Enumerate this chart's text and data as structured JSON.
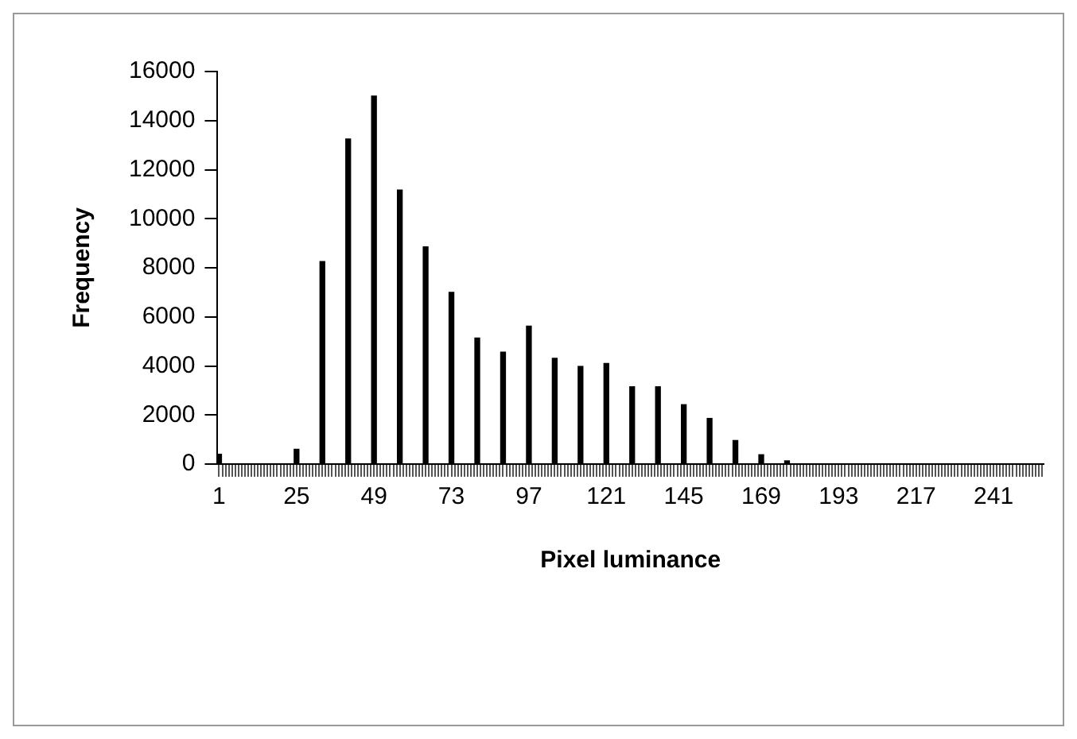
{
  "chart_data": {
    "type": "bar",
    "xlabel": "Pixel luminance",
    "ylabel": "Frequency",
    "color": "#000000",
    "grid": false,
    "legend": false,
    "ylim": [
      0,
      16000
    ],
    "yticks": [
      0,
      2000,
      4000,
      6000,
      8000,
      10000,
      12000,
      14000,
      16000
    ],
    "categories": [
      "1",
      null,
      null,
      null,
      null,
      null,
      null,
      null,
      null,
      null,
      null,
      null,
      null,
      null,
      null,
      null,
      null,
      null,
      null,
      null,
      null,
      null,
      null,
      null,
      "25",
      null,
      null,
      null,
      null,
      null,
      null,
      null,
      null,
      null,
      null,
      null,
      null,
      null,
      null,
      null,
      null,
      null,
      null,
      null,
      null,
      null,
      null,
      null,
      "49",
      null,
      null,
      null,
      null,
      null,
      null,
      null,
      null,
      null,
      null,
      null,
      null,
      null,
      null,
      null,
      null,
      null,
      null,
      null,
      null,
      null,
      null,
      null,
      "73",
      null,
      null,
      null,
      null,
      null,
      null,
      null,
      null,
      null,
      null,
      null,
      null,
      null,
      null,
      null,
      null,
      null,
      null,
      null,
      null,
      null,
      null,
      null,
      "97",
      null,
      null,
      null,
      null,
      null,
      null,
      null,
      null,
      null,
      null,
      null,
      null,
      null,
      null,
      null,
      null,
      null,
      null,
      null,
      null,
      null,
      null,
      null,
      "121",
      null,
      null,
      null,
      null,
      null,
      null,
      null,
      null,
      null,
      null,
      null,
      null,
      null,
      null,
      null,
      null,
      null,
      null,
      null,
      null,
      null,
      null,
      null,
      "145",
      null,
      null,
      null,
      null,
      null,
      null,
      null,
      null,
      null,
      null,
      null,
      null,
      null,
      null,
      null,
      null,
      null,
      null,
      null,
      null,
      null,
      null,
      null,
      "169",
      null,
      null,
      null,
      null,
      null,
      null,
      null,
      null,
      null,
      null,
      null,
      null,
      null,
      null,
      null,
      null,
      null,
      null,
      null,
      null,
      null,
      null,
      null,
      "193",
      null,
      null,
      null,
      null,
      null,
      null,
      null,
      null,
      null,
      null,
      null,
      null,
      null,
      null,
      null,
      null,
      null,
      null,
      null,
      null,
      null,
      null,
      null,
      "217",
      null,
      null,
      null,
      null,
      null,
      null,
      null,
      null,
      null,
      null,
      null,
      null,
      null,
      null,
      null,
      null,
      null,
      null,
      null,
      null,
      null,
      null,
      null,
      "241",
      null,
      null,
      null,
      null,
      null,
      null,
      null,
      null,
      null,
      null,
      null,
      null,
      null,
      null,
      null
    ],
    "values": [
      400,
      0,
      0,
      0,
      0,
      0,
      0,
      0,
      0,
      0,
      0,
      0,
      0,
      0,
      0,
      0,
      0,
      0,
      0,
      0,
      0,
      0,
      0,
      0,
      600,
      0,
      0,
      0,
      0,
      0,
      0,
      0,
      8250,
      0,
      0,
      0,
      0,
      0,
      0,
      0,
      13250,
      0,
      0,
      0,
      0,
      0,
      0,
      0,
      15000,
      0,
      0,
      0,
      0,
      0,
      0,
      0,
      11170,
      0,
      0,
      0,
      0,
      0,
      0,
      0,
      8850,
      0,
      0,
      0,
      0,
      0,
      0,
      0,
      7000,
      0,
      0,
      0,
      0,
      0,
      0,
      0,
      5140,
      0,
      0,
      0,
      0,
      0,
      0,
      0,
      4560,
      0,
      0,
      0,
      0,
      0,
      0,
      0,
      5620,
      0,
      0,
      0,
      0,
      0,
      0,
      0,
      4310,
      0,
      0,
      0,
      0,
      0,
      0,
      0,
      3980,
      0,
      0,
      0,
      0,
      0,
      0,
      0,
      4100,
      0,
      0,
      0,
      0,
      0,
      0,
      0,
      3150,
      0,
      0,
      0,
      0,
      0,
      0,
      0,
      3150,
      0,
      0,
      0,
      0,
      0,
      0,
      0,
      2420,
      0,
      0,
      0,
      0,
      0,
      0,
      0,
      1860,
      0,
      0,
      0,
      0,
      0,
      0,
      0,
      960,
      0,
      0,
      0,
      0,
      0,
      0,
      0,
      380,
      0,
      0,
      0,
      0,
      0,
      0,
      0,
      130,
      0,
      0,
      0,
      0,
      0,
      0,
      0,
      0,
      0,
      0,
      0,
      0,
      0,
      0,
      0,
      0,
      0,
      0,
      0,
      0,
      0,
      0,
      0,
      0,
      0,
      0,
      0,
      0,
      0,
      0,
      0,
      0,
      0,
      0,
      0,
      0,
      0,
      0,
      0,
      0,
      0,
      0,
      0,
      0,
      0,
      0,
      0,
      0,
      0,
      0,
      0,
      0,
      0,
      0,
      0,
      0,
      0,
      0,
      0,
      0,
      0,
      0,
      0,
      0,
      0,
      0,
      0,
      0,
      0,
      0,
      0,
      0,
      0,
      0,
      0,
      0,
      0,
      0,
      0
    ]
  }
}
